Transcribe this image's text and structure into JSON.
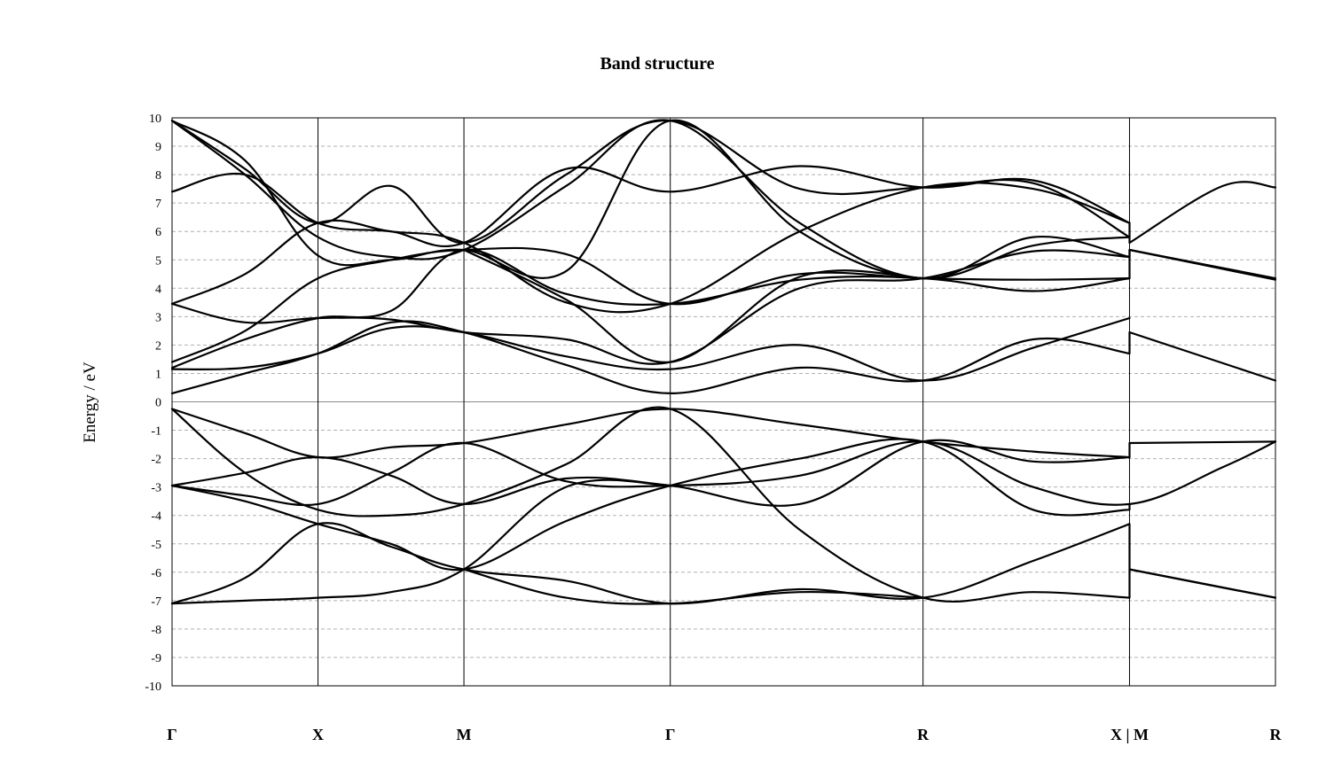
{
  "chart_data": {
    "type": "line",
    "title": "Band structure",
    "ylabel": "Energy / eV",
    "xlabel": "",
    "ylim": [
      -10,
      10
    ],
    "yticks": [
      10,
      9,
      8,
      7,
      6,
      5,
      4,
      3,
      2,
      1,
      0,
      -1,
      -2,
      -3,
      -4,
      -5,
      -6,
      -7,
      -8,
      -9,
      -10
    ],
    "grid": true,
    "k_path_positions": [
      0,
      1,
      2,
      3.414,
      5.146,
      6.561,
      7.561
    ],
    "k_labels": [
      "Γ",
      "X",
      "M",
      "Γ",
      "R",
      "X | M",
      "R"
    ],
    "series": [
      {
        "values": [
          [
            0,
            -0.25
          ],
          [
            0.5,
            -1.1
          ],
          [
            1,
            -1.95
          ],
          [
            1.5,
            -1.6
          ],
          [
            2,
            -1.45
          ],
          [
            2.7,
            -0.8
          ],
          [
            3.414,
            -0.25
          ],
          [
            4.3,
            -0.8
          ],
          [
            5.146,
            -1.4
          ],
          [
            5.9,
            -1.75
          ],
          [
            6.561,
            -1.95
          ],
          [
            6.561,
            -1.45
          ],
          [
            7.561,
            -1.4
          ]
        ]
      },
      {
        "values": [
          [
            0,
            -0.25
          ],
          [
            0.5,
            -2.5
          ],
          [
            1,
            -3.8
          ],
          [
            1.5,
            -4.0
          ],
          [
            2,
            -3.6
          ],
          [
            2.7,
            -2.2
          ],
          [
            3.414,
            -0.25
          ],
          [
            4.3,
            -4.5
          ],
          [
            5.146,
            -6.9
          ],
          [
            5.9,
            -6.7
          ],
          [
            6.561,
            -6.9
          ],
          [
            6.561,
            -5.9
          ],
          [
            7.561,
            -6.9
          ]
        ]
      },
      {
        "values": [
          [
            0,
            -2.95
          ],
          [
            0.5,
            -2.5
          ],
          [
            1,
            -1.95
          ],
          [
            1.5,
            -2.6
          ],
          [
            2,
            -3.6
          ],
          [
            2.7,
            -2.7
          ],
          [
            3.414,
            -2.95
          ],
          [
            4.3,
            -3.6
          ],
          [
            5.146,
            -1.4
          ],
          [
            5.9,
            -2.1
          ],
          [
            6.561,
            -1.95
          ]
        ]
      },
      {
        "values": [
          [
            0,
            -2.95
          ],
          [
            0.5,
            -3.3
          ],
          [
            1,
            -3.6
          ],
          [
            1.5,
            -2.5
          ],
          [
            2,
            -1.45
          ],
          [
            2.7,
            -2.8
          ],
          [
            3.414,
            -2.95
          ],
          [
            4.3,
            -2.6
          ],
          [
            5.146,
            -1.4
          ],
          [
            5.9,
            -3.0
          ],
          [
            6.561,
            -3.6
          ],
          [
            7.2,
            -2.3
          ],
          [
            7.561,
            -1.4
          ]
        ]
      },
      {
        "values": [
          [
            0,
            -2.95
          ],
          [
            0.5,
            -3.5
          ],
          [
            1,
            -4.3
          ],
          [
            1.5,
            -5.0
          ],
          [
            2,
            -5.9
          ],
          [
            2.7,
            -4.2
          ],
          [
            3.414,
            -2.95
          ],
          [
            4.3,
            -2.0
          ],
          [
            5.146,
            -1.4
          ],
          [
            5.9,
            -3.8
          ],
          [
            6.561,
            -3.8
          ],
          [
            6.561,
            -3.6
          ]
        ]
      },
      {
        "values": [
          [
            0,
            -7.1
          ],
          [
            0.5,
            -7.0
          ],
          [
            1,
            -6.9
          ],
          [
            1.5,
            -6.7
          ],
          [
            2,
            -5.9
          ],
          [
            2.7,
            -3.0
          ],
          [
            3.414,
            -2.95
          ]
        ]
      },
      {
        "values": [
          [
            0,
            -7.1
          ],
          [
            0.5,
            -6.2
          ],
          [
            1,
            -4.3
          ],
          [
            1.5,
            -5.1
          ],
          [
            2,
            -5.9
          ],
          [
            2.7,
            -6.3
          ],
          [
            3.414,
            -7.1
          ],
          [
            4.3,
            -6.6
          ],
          [
            5.146,
            -6.9
          ],
          [
            5.9,
            -5.6
          ],
          [
            6.561,
            -4.3
          ],
          [
            6.561,
            -5.9
          ],
          [
            7.561,
            -6.9
          ]
        ]
      },
      {
        "values": [
          [
            2,
            -5.9
          ],
          [
            2.7,
            -6.9
          ],
          [
            3.414,
            -7.1
          ],
          [
            4.3,
            -6.7
          ],
          [
            5.146,
            -6.9
          ]
        ]
      },
      {
        "values": [
          [
            0,
            0.3
          ],
          [
            0.5,
            1.0
          ],
          [
            1,
            1.7
          ],
          [
            1.5,
            2.8
          ],
          [
            2,
            2.45
          ],
          [
            2.7,
            1.3
          ],
          [
            3.414,
            0.3
          ],
          [
            4.3,
            1.2
          ],
          [
            5.146,
            0.75
          ],
          [
            5.9,
            2.2
          ],
          [
            6.561,
            1.7
          ],
          [
            6.561,
            2.45
          ],
          [
            7.561,
            0.75
          ]
        ]
      },
      {
        "values": [
          [
            0,
            1.15
          ],
          [
            0.5,
            1.2
          ],
          [
            1,
            1.7
          ],
          [
            1.5,
            2.6
          ],
          [
            2,
            2.45
          ],
          [
            2.7,
            1.6
          ],
          [
            3.414,
            1.15
          ],
          [
            4.3,
            2.0
          ],
          [
            5.146,
            0.75
          ],
          [
            5.9,
            1.9
          ],
          [
            6.561,
            2.95
          ]
        ]
      },
      {
        "values": [
          [
            0,
            1.2
          ],
          [
            0.5,
            2.2
          ],
          [
            1,
            2.95
          ],
          [
            1.5,
            3.2
          ],
          [
            2,
            5.35
          ],
          [
            2.7,
            3.8
          ],
          [
            3.414,
            3.45
          ],
          [
            4.3,
            4.3
          ],
          [
            5.146,
            4.35
          ],
          [
            5.9,
            3.9
          ],
          [
            6.561,
            4.35
          ],
          [
            6.561,
            5.35
          ],
          [
            7.561,
            4.35
          ]
        ]
      },
      {
        "values": [
          [
            0,
            1.4
          ],
          [
            0.5,
            2.5
          ],
          [
            1,
            4.35
          ],
          [
            1.5,
            5.0
          ],
          [
            2,
            5.35
          ],
          [
            2.7,
            5.2
          ],
          [
            3.414,
            3.45
          ],
          [
            4.3,
            4.5
          ],
          [
            5.146,
            4.35
          ],
          [
            5.9,
            4.3
          ],
          [
            6.561,
            4.35
          ]
        ]
      },
      {
        "values": [
          [
            0,
            3.45
          ],
          [
            0.5,
            2.8
          ],
          [
            1,
            2.95
          ],
          [
            1.5,
            2.9
          ],
          [
            2,
            2.45
          ],
          [
            2.7,
            2.2
          ],
          [
            3.414,
            1.4
          ],
          [
            4.3,
            4.0
          ],
          [
            5.146,
            4.35
          ],
          [
            5.9,
            5.3
          ],
          [
            6.561,
            5.1
          ],
          [
            6.561,
            5.35
          ],
          [
            7.561,
            4.3
          ]
        ]
      },
      {
        "values": [
          [
            0,
            3.45
          ],
          [
            0.5,
            4.5
          ],
          [
            1,
            6.3
          ],
          [
            1.5,
            6.0
          ],
          [
            2,
            5.6
          ],
          [
            2.7,
            3.5
          ],
          [
            3.414,
            3.45
          ],
          [
            4.3,
            6.0
          ],
          [
            5.146,
            7.55
          ],
          [
            5.9,
            7.5
          ],
          [
            6.561,
            6.3
          ],
          [
            6.561,
            5.6
          ],
          [
            7.2,
            7.6
          ],
          [
            7.561,
            7.55
          ]
        ]
      },
      {
        "values": [
          [
            0,
            7.4
          ],
          [
            0.5,
            8.0
          ],
          [
            1,
            6.3
          ],
          [
            1.5,
            6.0
          ],
          [
            2,
            5.6
          ],
          [
            2.7,
            8.2
          ],
          [
            3.414,
            7.4
          ],
          [
            4.3,
            8.3
          ],
          [
            5.146,
            7.55
          ],
          [
            5.9,
            7.8
          ],
          [
            6.561,
            6.3
          ]
        ]
      },
      {
        "values": [
          [
            0,
            9.9
          ],
          [
            0.5,
            8.2
          ],
          [
            1,
            6.3
          ],
          [
            1.5,
            7.6
          ],
          [
            2,
            5.6
          ],
          [
            2.7,
            8.0
          ],
          [
            3.414,
            9.9
          ],
          [
            4.3,
            7.5
          ],
          [
            5.146,
            7.55
          ],
          [
            5.9,
            7.7
          ],
          [
            6.561,
            5.8
          ]
        ]
      },
      {
        "values": [
          [
            0,
            9.9
          ],
          [
            0.5,
            8.5
          ],
          [
            1,
            5.15
          ],
          [
            1.5,
            5.0
          ],
          [
            2,
            5.35
          ],
          [
            2.7,
            4.6
          ],
          [
            3.414,
            9.9
          ],
          [
            4.3,
            6.0
          ],
          [
            5.146,
            4.35
          ],
          [
            5.9,
            5.5
          ],
          [
            6.561,
            5.8
          ]
        ]
      },
      {
        "values": [
          [
            0,
            9.9
          ],
          [
            0.5,
            8.0
          ],
          [
            1,
            5.8
          ],
          [
            1.5,
            5.1
          ],
          [
            2,
            5.35
          ],
          [
            2.7,
            7.6
          ],
          [
            3.414,
            9.9
          ],
          [
            4.3,
            6.3
          ],
          [
            5.146,
            4.35
          ],
          [
            5.9,
            5.8
          ],
          [
            6.561,
            5.1
          ]
        ]
      },
      {
        "values": [
          [
            2,
            5.35
          ],
          [
            2.7,
            3.6
          ],
          [
            3.414,
            1.4
          ],
          [
            4.3,
            4.4
          ],
          [
            5.146,
            4.35
          ]
        ]
      }
    ]
  }
}
